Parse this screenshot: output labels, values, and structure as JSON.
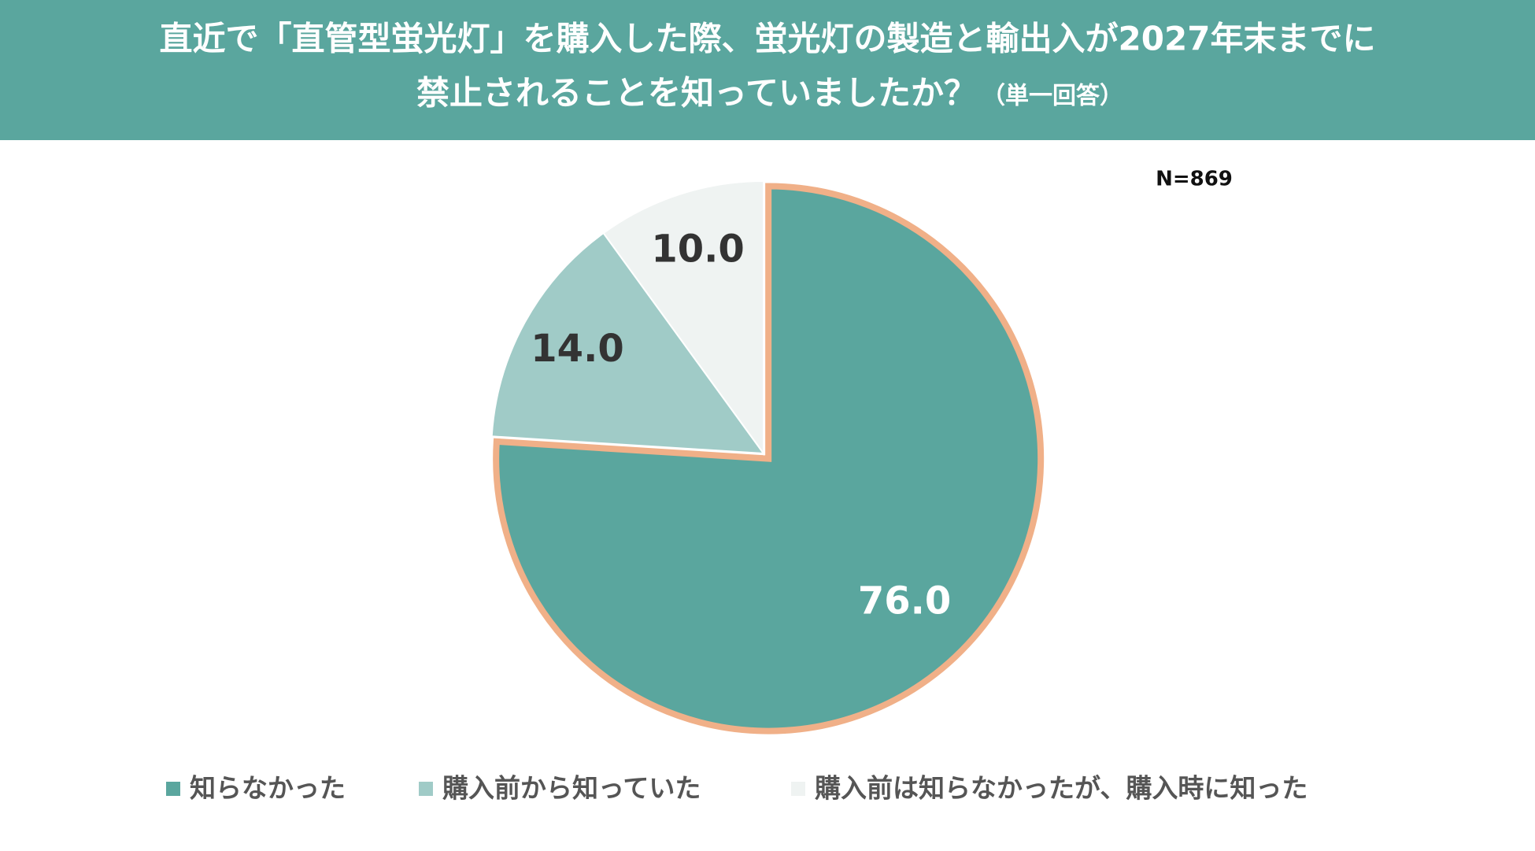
{
  "chart_data": {
    "type": "pie",
    "title_lines": [
      "直近で「直管型蛍光灯」を購入した際、蛍光灯の製造と輸出入が2027年末までに",
      "禁止されることを知っていましたか？"
    ],
    "title_note": "（単一回答）",
    "sample_note": "N=869",
    "categories": [
      "知らなかった",
      "購入前から知っていた",
      "購入前は知らなかったが、購入時に知った"
    ],
    "values": [
      76.0,
      14.0,
      10.0
    ],
    "value_labels": [
      "76.0",
      "14.0",
      "10.0"
    ],
    "colors": [
      "#5aa69e",
      "#a0cbc7",
      "#eff3f2"
    ],
    "highlight_color": "#f0b088"
  }
}
